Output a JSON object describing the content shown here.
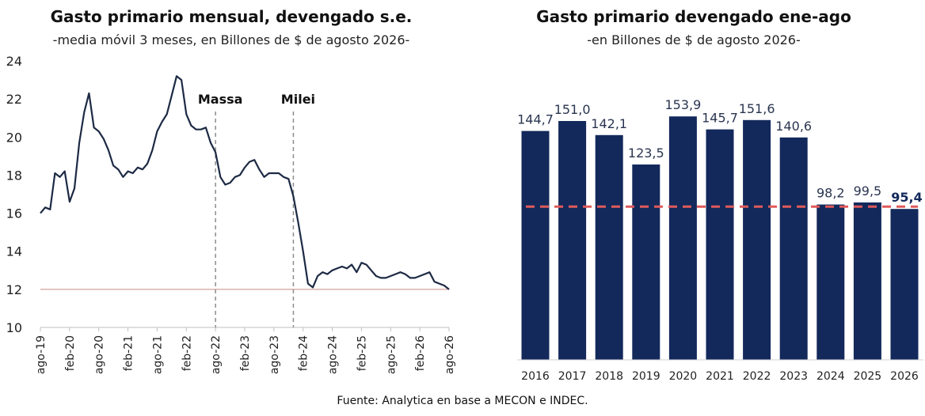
{
  "source": "Fuente: Analytica en base a MECON e INDEC.",
  "chart_data": [
    {
      "type": "line",
      "title": "Gasto primario mensual, devengado s.e.",
      "subtitle": "-media móvil 3 meses, en Billones de $ de agosto 2026-",
      "xlabel": "",
      "ylabel": "",
      "ylim": [
        10,
        24
      ],
      "yticks": [
        10,
        12,
        14,
        16,
        18,
        20,
        22,
        24
      ],
      "xticks": [
        "ago-19",
        "feb-20",
        "ago-20",
        "feb-21",
        "ago-21",
        "feb-22",
        "ago-22",
        "feb-23",
        "ago-23",
        "feb-24",
        "ago-24",
        "feb-25",
        "ago-25",
        "feb-26",
        "ago-26"
      ],
      "x_start": "ago-19",
      "x_end": "ago-26",
      "annotations": [
        {
          "label": "Massa",
          "x": "ago-22"
        },
        {
          "label": "Milei",
          "x": "dic-23"
        }
      ],
      "reference_line": 12.0,
      "series": [
        {
          "values": [
            16.0,
            16.3,
            16.2,
            18.1,
            17.9,
            18.2,
            16.6,
            17.3,
            19.7,
            21.3,
            22.3,
            20.5,
            20.3,
            19.9,
            19.3,
            18.5,
            18.3,
            17.9,
            18.2,
            18.1,
            18.4,
            18.3,
            18.6,
            19.3,
            20.3,
            20.8,
            21.2,
            22.2,
            23.2,
            23.0,
            21.2,
            20.6,
            20.4,
            20.4,
            20.5,
            19.7,
            19.2,
            17.9,
            17.5,
            17.6,
            17.9,
            18.0,
            18.4,
            18.7,
            18.8,
            18.3,
            17.9,
            18.1,
            18.1,
            18.1,
            17.9,
            17.8,
            16.9,
            15.5,
            14.0,
            12.3,
            12.1,
            12.7,
            12.9,
            12.8,
            13.0,
            13.1,
            13.2,
            13.1,
            13.3,
            12.9,
            13.4,
            13.3,
            13.0,
            12.7,
            12.6,
            12.6,
            12.7,
            12.8,
            12.9,
            12.8,
            12.6,
            12.6,
            12.7,
            12.8,
            12.9,
            12.4,
            12.3,
            12.2,
            12.0
          ]
        }
      ]
    },
    {
      "type": "bar",
      "title": "Gasto primario devengado ene-ago",
      "subtitle": "-en Billones de $ de agosto 2026-",
      "xlabel": "",
      "ylabel": "",
      "ylim": [
        0,
        175
      ],
      "categories": [
        "2016",
        "2017",
        "2018",
        "2019",
        "2020",
        "2021",
        "2022",
        "2023",
        "2024",
        "2025",
        "2026"
      ],
      "values": [
        144.7,
        151.0,
        142.1,
        123.5,
        153.9,
        145.7,
        151.6,
        140.6,
        98.2,
        99.5,
        95.4
      ],
      "labels": [
        "144,7",
        "151,0",
        "142,1",
        "123,5",
        "153,9",
        "145,7",
        "151,6",
        "140,6",
        "98,2",
        "99,5",
        "95,4"
      ],
      "highlight_index": 10,
      "reference_line": 95.4,
      "colors": {
        "bar": "#13295b",
        "reference": "#e05a5a",
        "line": "#1d2a44"
      }
    }
  ]
}
